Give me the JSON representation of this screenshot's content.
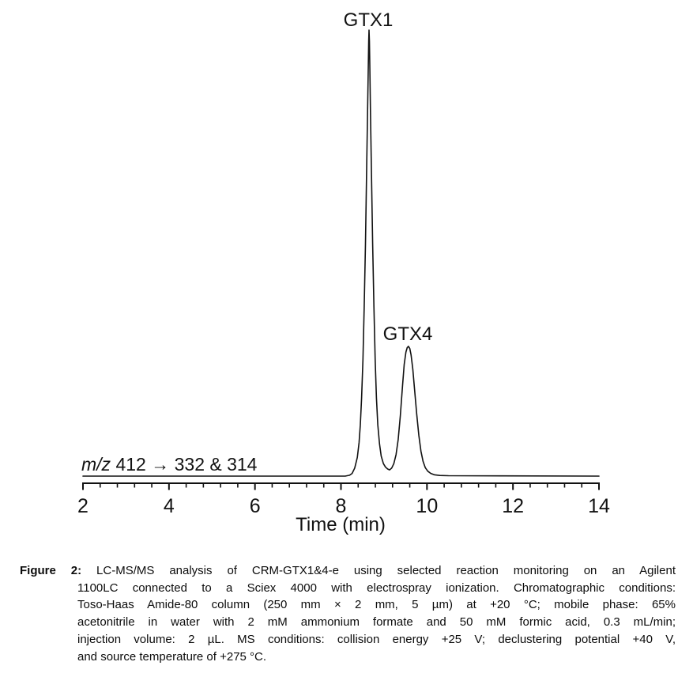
{
  "colors": {
    "background": "#ffffff",
    "ink": "#111111"
  },
  "chart_data": {
    "type": "line",
    "title": "",
    "xlabel": "Time (min)",
    "ylabel": "",
    "x_range": [
      2,
      14
    ],
    "x_major_ticks": [
      2,
      4,
      6,
      8,
      10,
      12,
      14
    ],
    "x_minor_tick_interval": 0.4,
    "grid": false,
    "legend": false,
    "annotation": {
      "italic": "m/z",
      "rest": " 412 → 332 & 314"
    },
    "peaks": [
      {
        "label": "GTX1",
        "retention_time_min": 8.65,
        "relative_intensity": 1.0
      },
      {
        "label": "GTX4",
        "retention_time_min": 9.57,
        "relative_intensity": 0.29
      }
    ],
    "trace": [
      [
        2.0,
        0
      ],
      [
        8.1,
        0
      ],
      [
        8.2,
        0.002
      ],
      [
        8.26,
        0.006
      ],
      [
        8.32,
        0.018
      ],
      [
        8.38,
        0.042
      ],
      [
        8.42,
        0.075
      ],
      [
        8.45,
        0.115
      ],
      [
        8.48,
        0.175
      ],
      [
        8.51,
        0.26
      ],
      [
        8.54,
        0.38
      ],
      [
        8.57,
        0.52
      ],
      [
        8.6,
        0.7
      ],
      [
        8.62,
        0.82
      ],
      [
        8.635,
        0.92
      ],
      [
        8.645,
        0.975
      ],
      [
        8.653,
        1.0
      ],
      [
        8.661,
        0.975
      ],
      [
        8.671,
        0.92
      ],
      [
        8.686,
        0.82
      ],
      [
        8.706,
        0.7
      ],
      [
        8.736,
        0.52
      ],
      [
        8.766,
        0.38
      ],
      [
        8.796,
        0.26
      ],
      [
        8.826,
        0.175
      ],
      [
        8.856,
        0.115
      ],
      [
        8.896,
        0.072
      ],
      [
        8.936,
        0.045
      ],
      [
        8.986,
        0.028
      ],
      [
        9.036,
        0.02
      ],
      [
        9.086,
        0.016
      ],
      [
        9.13,
        0.014
      ],
      [
        9.18,
        0.018
      ],
      [
        9.23,
        0.028
      ],
      [
        9.28,
        0.048
      ],
      [
        9.33,
        0.082
      ],
      [
        9.38,
        0.135
      ],
      [
        9.43,
        0.2
      ],
      [
        9.47,
        0.25
      ],
      [
        9.51,
        0.278
      ],
      [
        9.54,
        0.288
      ],
      [
        9.57,
        0.291
      ],
      [
        9.6,
        0.286
      ],
      [
        9.63,
        0.272
      ],
      [
        9.67,
        0.24
      ],
      [
        9.71,
        0.195
      ],
      [
        9.76,
        0.14
      ],
      [
        9.81,
        0.092
      ],
      [
        9.86,
        0.056
      ],
      [
        9.91,
        0.033
      ],
      [
        9.96,
        0.019
      ],
      [
        10.02,
        0.011
      ],
      [
        10.09,
        0.006
      ],
      [
        10.17,
        0.003
      ],
      [
        10.3,
        0.0015
      ],
      [
        10.5,
        0.0008
      ],
      [
        14.0,
        0
      ]
    ]
  },
  "caption": {
    "label": "Figure 2:",
    "lines": [
      "LC-MS/MS analysis of CRM-GTX1&4-e using selected reaction monitoring on an Agilent",
      "1100LC connected to a Sciex 4000 with electrospray ionization. Chromatographic conditions:",
      "Toso-Haas Amide-80 column (250 mm × 2 mm, 5 µm) at +20 °C; mobile phase: 65%",
      "acetonitrile in water with 2 mM ammonium formate and 50 mM formic acid, 0.3 mL/min;",
      "injection volume: 2 µL. MS conditions: collision energy +25 V; declustering potential +40 V,",
      "and source temperature of +275 °C."
    ]
  }
}
